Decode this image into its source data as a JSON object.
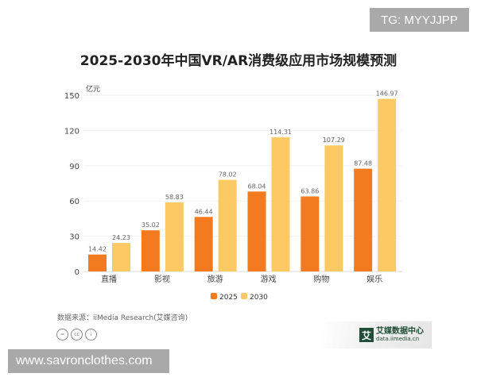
{
  "watermark_top": "TG: MYYJJPP",
  "watermark_bottom": "www.savronclothes.com",
  "source": "数据来源：iiMedia Research(艾媒咨询)",
  "logo": {
    "mark": "艾",
    "name": "艾媒数据中心",
    "url": "data.iimedia.cn"
  },
  "colors": {
    "2025": "#f47a20",
    "2030": "#fcc965"
  },
  "chart_data": {
    "type": "bar",
    "title": "2025-2030年中国VR/AR消费级应用市场规模预测",
    "ylabel": "亿元",
    "ylim": [
      0,
      150
    ],
    "yticks": [
      0,
      30,
      60,
      90,
      120,
      150
    ],
    "categories": [
      "直播",
      "影视",
      "旅游",
      "游戏",
      "购物",
      "娱乐"
    ],
    "series": [
      {
        "name": "2025",
        "values": [
          14.42,
          35.02,
          46.44,
          68.04,
          63.86,
          87.48
        ]
      },
      {
        "name": "2030",
        "values": [
          24.23,
          58.83,
          78.02,
          114.31,
          107.29,
          146.97
        ]
      }
    ],
    "legend": "bottom",
    "grid": true
  }
}
